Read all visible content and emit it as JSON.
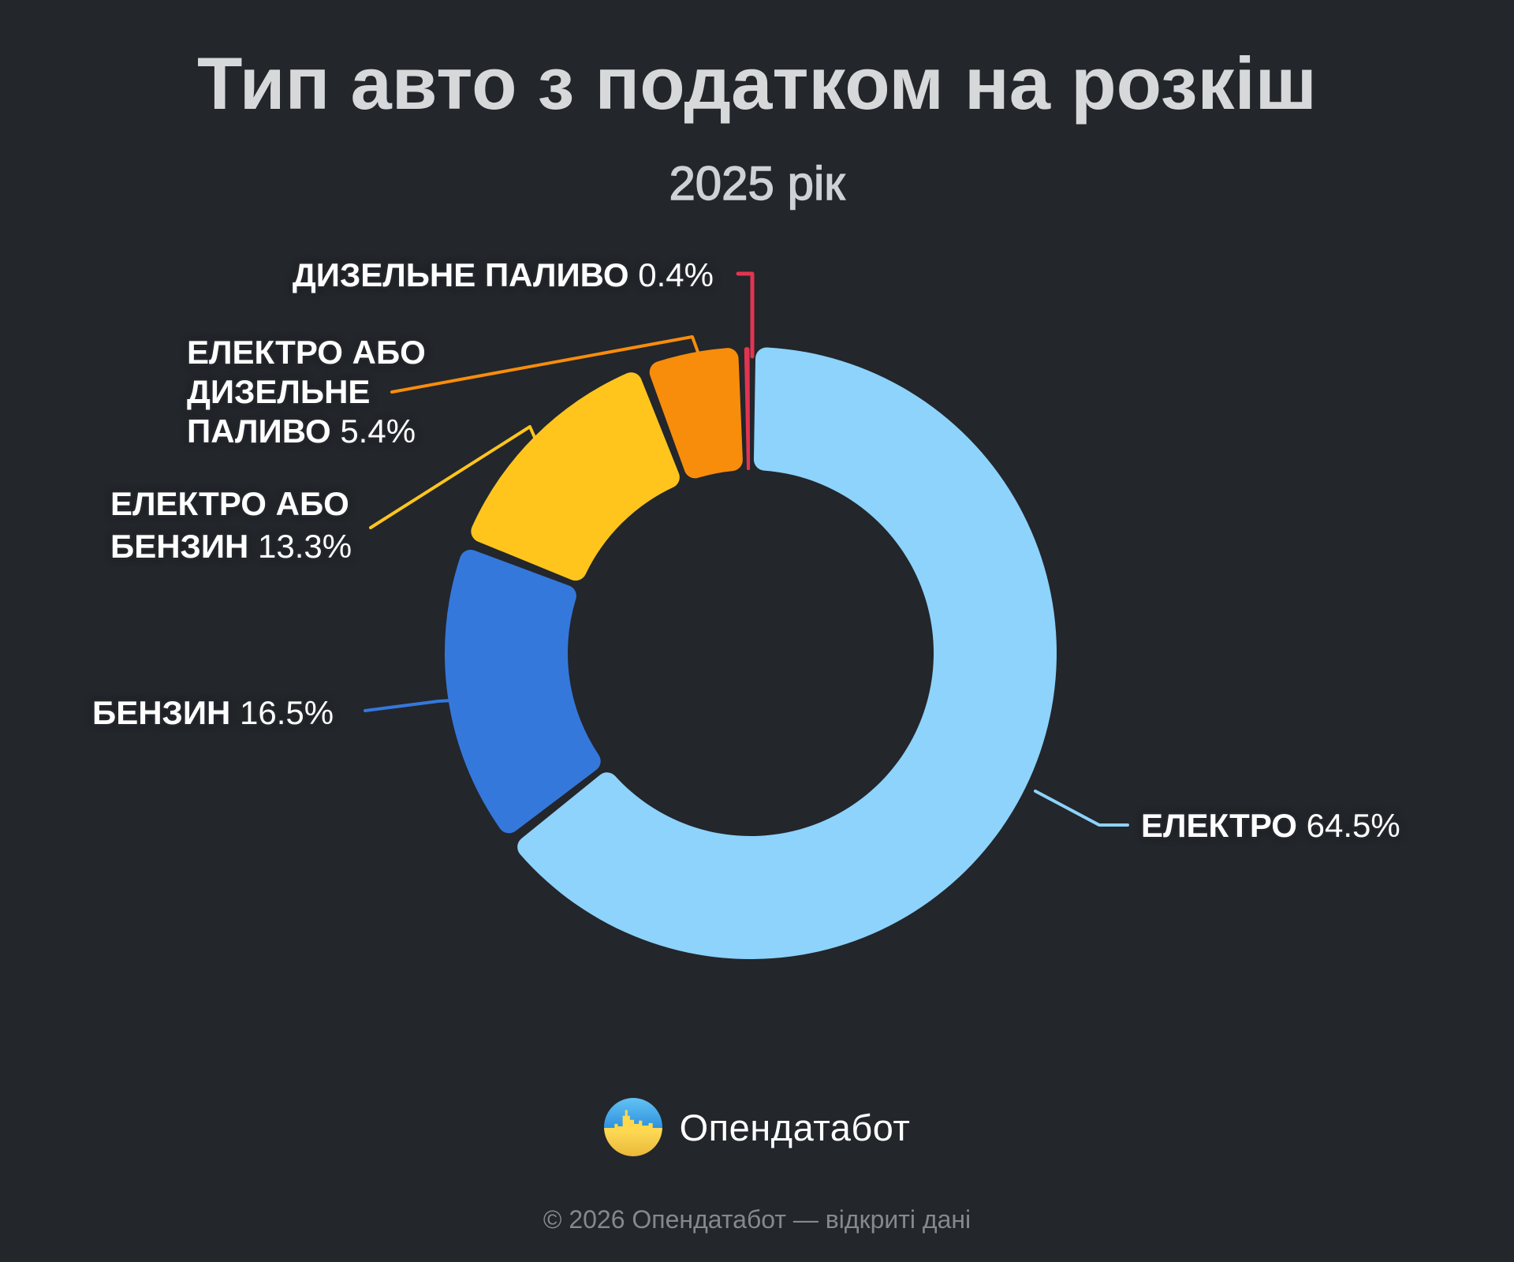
{
  "title": "Тип авто з податком на розкіш",
  "subtitle": "2025 рік",
  "brand": {
    "name": "Опендатабот"
  },
  "footer": "© 2026 Опендатабот — відкриті дані",
  "colors": {
    "background": "#23262b",
    "title": "#d6d8da",
    "subtitle": "#cfd2d5",
    "label_text": "#ffffff",
    "footer_text": "#85898e",
    "logo_blue": "#47a9ea",
    "logo_yellow": "#ffd84d"
  },
  "chart_data": {
    "type": "pie",
    "donut": true,
    "start_angle_deg": 0,
    "direction": "clockwise",
    "title": "Тип авто з податком на розкіш",
    "subtitle": "2025 рік",
    "unit": "%",
    "legend_position": "callout-labels",
    "slices": [
      {
        "label": "ЕЛЕКТРО",
        "value": 64.5,
        "pct_label": "64.5%",
        "color": "#8dd3fb"
      },
      {
        "label": "БЕНЗИН",
        "value": 16.5,
        "pct_label": "16.5%",
        "color": "#3578dc"
      },
      {
        "label": "ЕЛЕКТРО АБО БЕНЗИН",
        "value": 13.3,
        "pct_label": "13.3%",
        "color": "#ffc51d"
      },
      {
        "label": "ЕЛЕКТРО АБО ДИЗЕЛЬНЕ ПАЛИВО",
        "value": 5.4,
        "pct_label": "5.4%",
        "color": "#f88d0b"
      },
      {
        "label": "ДИЗЕЛЬНЕ ПАЛИВО",
        "value": 0.4,
        "pct_label": "0.4%",
        "color": "#e23450"
      }
    ],
    "callouts": [
      {
        "lines": [
          "ДИЗЕЛЬНЕ ПАЛИВО"
        ],
        "pct": "0.4%"
      },
      {
        "lines": [
          "ЕЛЕКТРО АБО",
          "ДИЗЕЛЬНЕ",
          "ПАЛИВО"
        ],
        "pct": "5.4%"
      },
      {
        "lines": [
          "ЕЛЕКТРО АБО",
          "БЕНЗИН"
        ],
        "pct": "13.3%"
      },
      {
        "lines": [
          "БЕНЗИН"
        ],
        "pct": "16.5%"
      },
      {
        "lines": [
          "ЕЛЕКТРО"
        ],
        "pct": "64.5%"
      }
    ]
  }
}
